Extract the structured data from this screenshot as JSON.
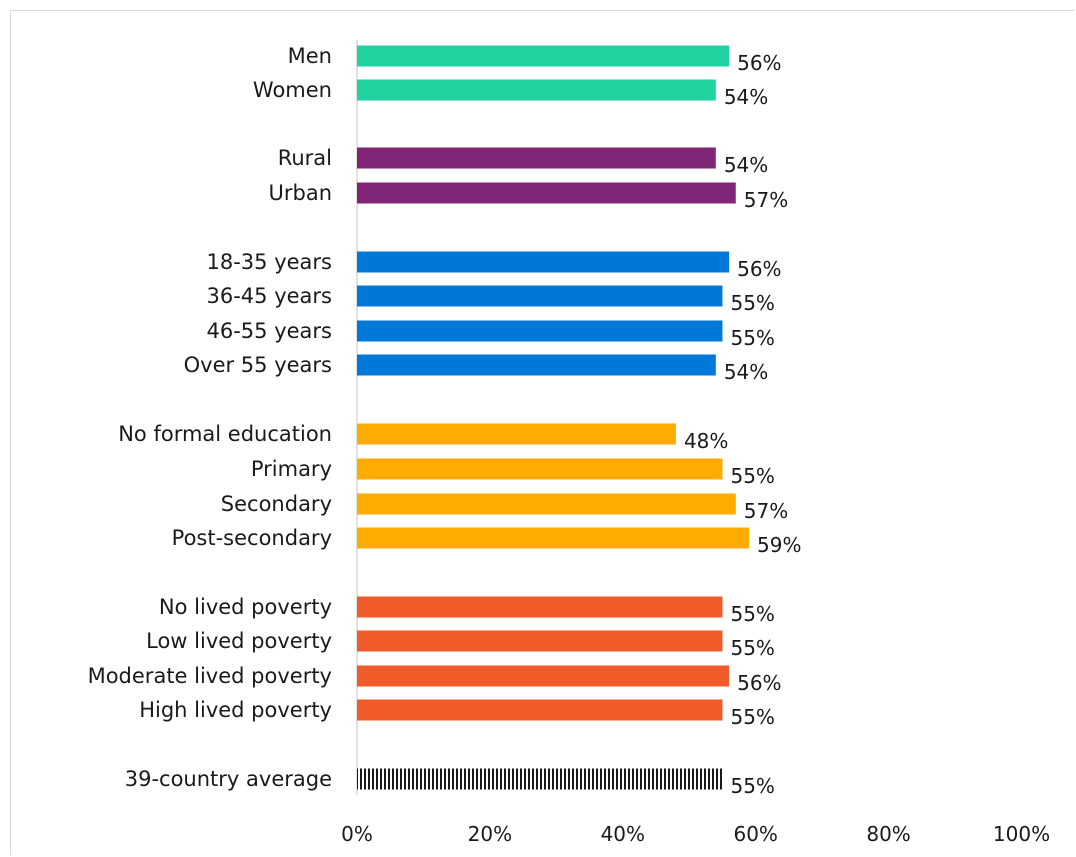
{
  "chart_data": {
    "type": "bar",
    "orientation": "horizontal",
    "title": "",
    "xlabel": "",
    "ylabel": "",
    "xlim": [
      0,
      100
    ],
    "x_ticks": [
      "0%",
      "20%",
      "40%",
      "60%",
      "80%",
      "100%"
    ],
    "grid": false,
    "legend": "none",
    "categories": [
      "Men",
      "Women",
      "Rural",
      "Urban",
      "18-35 years",
      "36-45 years",
      "46-55 years",
      "Over 55 years",
      "No formal education",
      "Primary",
      "Secondary",
      "Post-secondary",
      "No lived poverty",
      "Low lived poverty",
      "Moderate lived poverty",
      "High lived poverty",
      "39-country average"
    ],
    "values": [
      56,
      54,
      54,
      57,
      56,
      55,
      55,
      54,
      48,
      55,
      57,
      59,
      55,
      55,
      56,
      55,
      55
    ],
    "value_labels": [
      "56%",
      "54%",
      "54%",
      "57%",
      "56%",
      "55%",
      "55%",
      "54%",
      "48%",
      "55%",
      "57%",
      "59%",
      "55%",
      "55%",
      "56%",
      "55%",
      "55%"
    ],
    "groups": [
      {
        "members": [
          "Men",
          "Women"
        ],
        "color": "#22d3a2"
      },
      {
        "members": [
          "Rural",
          "Urban"
        ],
        "color": "#812677"
      },
      {
        "members": [
          "18-35 years",
          "36-45 years",
          "46-55 years",
          "Over 55 years"
        ],
        "color": "#0078d7"
      },
      {
        "members": [
          "No formal education",
          "Primary",
          "Secondary",
          "Post-secondary"
        ],
        "color": "#ffab00"
      },
      {
        "members": [
          "No lived poverty",
          "Low lived poverty",
          "Moderate lived poverty",
          "High lived poverty"
        ],
        "color": "#f15a29"
      },
      {
        "members": [
          "39-country average"
        ],
        "color": "#1a1a1a",
        "pattern": "vertical-stripes"
      }
    ]
  }
}
